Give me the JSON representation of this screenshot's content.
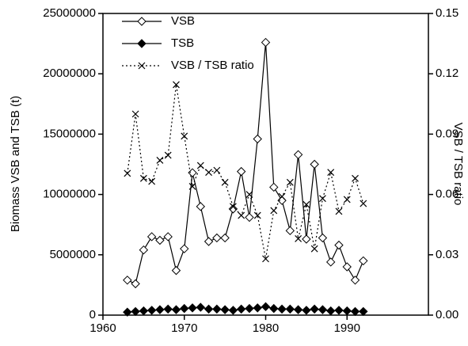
{
  "chart_data": {
    "type": "line",
    "xlabel": null,
    "ylabel": "Biomass VSB and TSB (t)",
    "y2label": "VSB / TSB ratio",
    "x": [
      1963,
      1964,
      1965,
      1966,
      1967,
      1968,
      1969,
      1970,
      1971,
      1972,
      1973,
      1974,
      1975,
      1976,
      1977,
      1978,
      1979,
      1980,
      1981,
      1982,
      1983,
      1984,
      1985,
      1986,
      1987,
      1988,
      1989,
      1990,
      1991,
      1992
    ],
    "xlim": [
      1960,
      2000
    ],
    "xticks": [
      1960,
      1970,
      1980,
      1990
    ],
    "ylim": [
      0,
      25000000
    ],
    "yticks": [
      0,
      5000000,
      10000000,
      15000000,
      20000000,
      25000000
    ],
    "y2lim": [
      0,
      0.15
    ],
    "y2ticks": [
      {
        "value": 0,
        "label": "0.00"
      },
      {
        "value": 0.03,
        "label": "0.03"
      },
      {
        "value": 0.06,
        "label": "0.06"
      },
      {
        "value": 0.09,
        "label": "0.09"
      },
      {
        "value": 0.12,
        "label": "0.12"
      },
      {
        "value": 0.15,
        "label": "0.15"
      }
    ],
    "legend": "upper left",
    "series": [
      {
        "name": "VSB",
        "color": "#000000",
        "marker": "diamond-open",
        "dash": "solid",
        "values": [
          2900000,
          2600000,
          5400000,
          6500000,
          6200000,
          6500000,
          3700000,
          5500000,
          11800000,
          9000000,
          6100000,
          6400000,
          6400000,
          8800000,
          11900000,
          8100000,
          14600000,
          22600000,
          10600000,
          9500000,
          7000000,
          13300000,
          6300000,
          12500000,
          6400000,
          4400000,
          5800000,
          4000000,
          2900000,
          4500000
        ]
      },
      {
        "name": "TSB",
        "color": "#000000",
        "marker": "diamond-filled",
        "dash": "solid",
        "values": [
          250000,
          300000,
          350000,
          400000,
          450000,
          500000,
          450000,
          550000,
          600000,
          650000,
          500000,
          500000,
          450000,
          400000,
          500000,
          550000,
          600000,
          700000,
          550000,
          500000,
          500000,
          450000,
          400000,
          500000,
          450000,
          350000,
          400000,
          350000,
          300000,
          300000
        ]
      },
      {
        "name": "VSB / TSB ratio",
        "color": "#000000",
        "marker": "x",
        "dash": "dotted",
        "axis": "y2",
        "values": [
          0.0705,
          0.1,
          0.068,
          0.0665,
          0.077,
          0.0795,
          0.1146,
          0.089,
          0.064,
          0.0744,
          0.071,
          0.072,
          0.066,
          0.054,
          0.0496,
          0.06,
          0.0496,
          0.028,
          0.052,
          0.059,
          0.066,
          0.038,
          0.055,
          0.033,
          0.058,
          0.071,
          0.0516,
          0.0575,
          0.068,
          0.0555
        ]
      }
    ]
  }
}
